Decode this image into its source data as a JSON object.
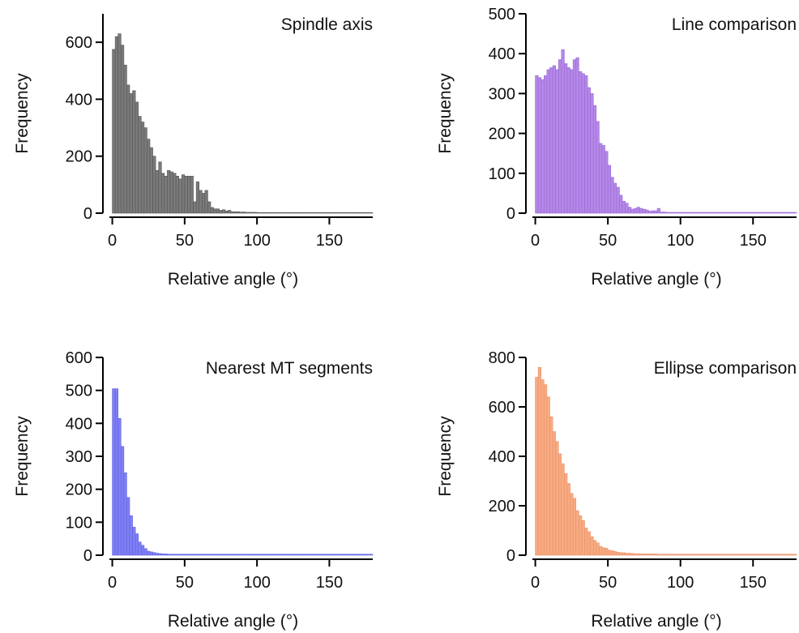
{
  "chart_data": [
    {
      "type": "bar",
      "title": "Spindle axis",
      "xlabel": "Relative angle (°)",
      "ylabel": "Frequency",
      "xlim": [
        -2,
        180
      ],
      "ylim": [
        0,
        700
      ],
      "xticks": [
        0,
        50,
        100,
        150
      ],
      "yticks": [
        0,
        200,
        400,
        600
      ],
      "bin_width": 2,
      "color": "#7a7a7a",
      "edge_color": "#555555",
      "values": [
        575,
        620,
        630,
        590,
        520,
        450,
        420,
        430,
        390,
        340,
        320,
        300,
        260,
        230,
        200,
        150,
        180,
        140,
        130,
        150,
        145,
        140,
        130,
        120,
        135,
        130,
        130,
        130,
        40,
        110,
        80,
        70,
        80,
        40,
        20,
        15,
        15,
        10,
        12,
        8,
        10,
        5,
        5,
        5,
        4,
        4,
        3,
        3,
        3,
        3,
        2,
        2,
        2,
        2,
        2,
        2,
        2,
        2,
        2,
        2,
        2,
        2,
        2,
        2,
        2,
        2,
        2,
        2,
        2,
        2,
        2,
        2,
        2,
        2,
        2,
        2,
        2,
        2,
        2,
        2,
        2,
        2,
        2,
        2,
        2,
        2,
        2,
        2,
        2,
        2
      ]
    },
    {
      "type": "bar",
      "title": "Line comparison",
      "xlabel": "Relative angle (°)",
      "ylabel": "Frequency",
      "xlim": [
        -2,
        180
      ],
      "ylim": [
        0,
        500
      ],
      "xticks": [
        0,
        50,
        100,
        150
      ],
      "yticks": [
        0,
        100,
        200,
        300,
        400,
        500
      ],
      "bin_width": 2,
      "color": "#b487e8",
      "edge_color": "#9a6bd4",
      "values": [
        345,
        340,
        335,
        345,
        360,
        365,
        370,
        360,
        385,
        410,
        375,
        365,
        360,
        385,
        390,
        355,
        350,
        345,
        315,
        300,
        270,
        230,
        175,
        170,
        155,
        120,
        90,
        75,
        65,
        45,
        30,
        25,
        15,
        10,
        12,
        15,
        12,
        10,
        8,
        5,
        6,
        6,
        12,
        3,
        3,
        2,
        2,
        2,
        2,
        2,
        2,
        2,
        2,
        2,
        2,
        2,
        2,
        2,
        2,
        2,
        2,
        2,
        2,
        2,
        2,
        2,
        2,
        2,
        2,
        2,
        2,
        2,
        2,
        2,
        2,
        2,
        2,
        2,
        2,
        2,
        2,
        2,
        2,
        2,
        2,
        2,
        2,
        2,
        2,
        2
      ]
    },
    {
      "type": "bar",
      "title": "Nearest MT segments",
      "xlabel": "Relative angle (°)",
      "ylabel": "Frequency",
      "xlim": [
        -2,
        180
      ],
      "ylim": [
        0,
        600
      ],
      "xticks": [
        0,
        50,
        100,
        150
      ],
      "yticks": [
        0,
        100,
        200,
        300,
        400,
        500,
        600
      ],
      "bin_width": 2,
      "color": "#7f7ff5",
      "edge_color": "#6262e0",
      "values": [
        505,
        505,
        415,
        330,
        250,
        175,
        120,
        85,
        65,
        40,
        30,
        20,
        12,
        10,
        8,
        6,
        5,
        4,
        4,
        3,
        3,
        3,
        3,
        3,
        3,
        3,
        3,
        3,
        3,
        3,
        3,
        3,
        3,
        3,
        3,
        3,
        3,
        3,
        3,
        3,
        3,
        3,
        3,
        3,
        3,
        3,
        3,
        3,
        3,
        3,
        3,
        3,
        3,
        3,
        3,
        3,
        3,
        3,
        3,
        3,
        3,
        3,
        3,
        3,
        3,
        3,
        3,
        3,
        3,
        3,
        3,
        3,
        3,
        3,
        3,
        3,
        3,
        3,
        3,
        3,
        3,
        3,
        3,
        3,
        3,
        3,
        3,
        3,
        3,
        3
      ]
    },
    {
      "type": "bar",
      "title": "Ellipse comparison",
      "xlabel": "Relative angle (°)",
      "ylabel": "Frequency",
      "xlim": [
        -2,
        180
      ],
      "ylim": [
        0,
        800
      ],
      "xticks": [
        0,
        50,
        100,
        150
      ],
      "yticks": [
        0,
        200,
        400,
        600,
        800
      ],
      "bin_width": 2,
      "color": "#f7ab82",
      "edge_color": "#eb9167",
      "values": [
        720,
        760,
        710,
        690,
        640,
        560,
        500,
        460,
        410,
        370,
        330,
        290,
        250,
        230,
        180,
        160,
        140,
        110,
        95,
        75,
        60,
        50,
        35,
        30,
        28,
        20,
        18,
        15,
        12,
        10,
        10,
        8,
        8,
        7,
        6,
        6,
        5,
        5,
        5,
        5,
        5,
        5,
        4,
        4,
        4,
        4,
        4,
        4,
        4,
        4,
        4,
        4,
        4,
        4,
        4,
        4,
        4,
        4,
        4,
        4,
        4,
        4,
        4,
        4,
        4,
        4,
        4,
        4,
        4,
        4,
        4,
        4,
        4,
        4,
        4,
        4,
        4,
        4,
        4,
        4,
        4,
        4,
        4,
        4,
        4,
        4,
        4,
        4,
        4,
        4
      ]
    }
  ]
}
